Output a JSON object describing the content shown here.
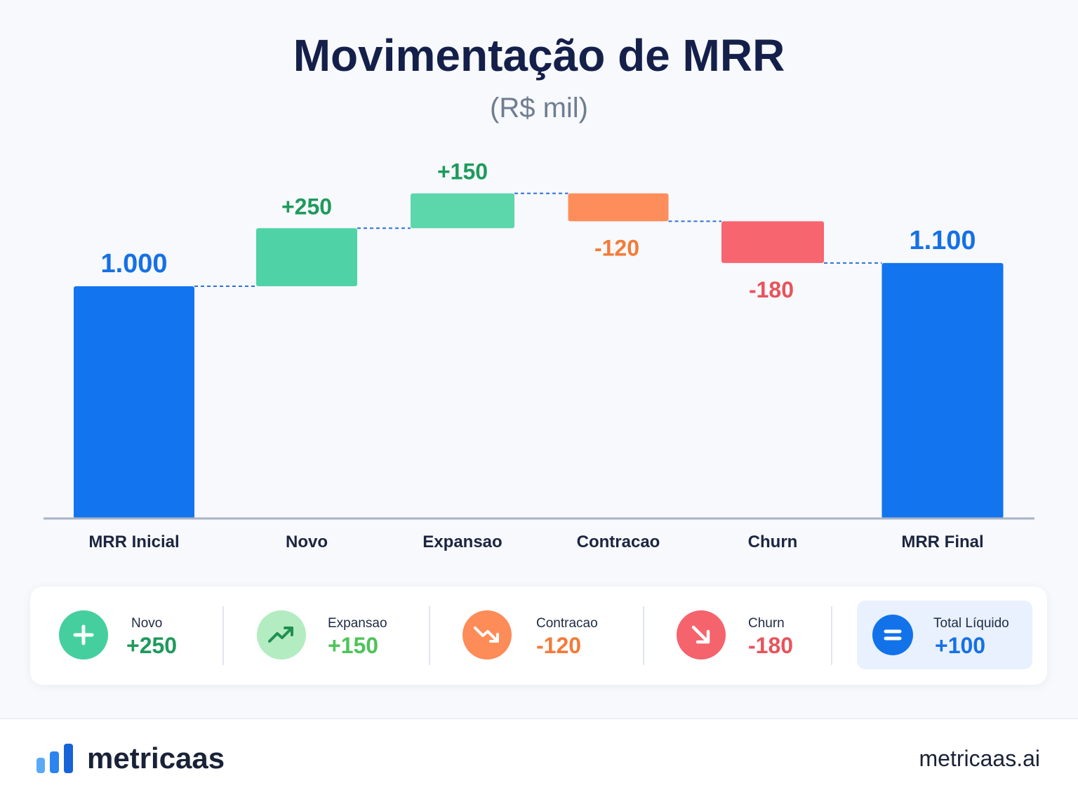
{
  "chart_data": {
    "type": "waterfall",
    "title": "Movimentação de MRR",
    "subtitle": "(R$ mil)",
    "categories": [
      "MRR Inicial",
      "Novo",
      "Expansao",
      "Contracao",
      "Churn",
      "MRR Final"
    ],
    "values": [
      1000,
      250,
      150,
      -120,
      -180,
      1100
    ],
    "kinds": [
      "total",
      "delta",
      "delta",
      "delta",
      "delta",
      "total"
    ],
    "labels": [
      "1.000",
      "+250",
      "+150",
      "-120",
      "-180",
      "1.100"
    ],
    "colors": [
      "#1374ef",
      "#4fd3a6",
      "#5cd6ab",
      "#fe8d5c",
      "#f7656f",
      "#1374ef"
    ],
    "label_colors": [
      "#1670e6",
      "#1e9a5c",
      "#1e9a5c",
      "#f37b38",
      "#e8535c",
      "#1670e6"
    ],
    "grid": false,
    "connectors": true
  },
  "summary": [
    {
      "label": "Novo",
      "value": "+250",
      "icon": "plus-icon",
      "icon_bg": "#45cf9f",
      "value_color": "#1e9a5c"
    },
    {
      "label": "Expansao",
      "value": "+150",
      "icon": "trending-up-icon",
      "icon_bg": "#b3ecc0",
      "value_color": "#4ec35a"
    },
    {
      "label": "Contracao",
      "value": "-120",
      "icon": "trending-down-icon",
      "icon_bg": "#fd8c58",
      "value_color": "#f37b38"
    },
    {
      "label": "Churn",
      "value": "-180",
      "icon": "arrow-down-right-icon",
      "icon_bg": "#f5636d",
      "value_color": "#e8535c"
    },
    {
      "label": "Total Líquido",
      "value": "+100",
      "icon": "equals-icon",
      "icon_bg": "#1272ea",
      "value_color": "#1670e6"
    }
  ],
  "footer": {
    "brand": "metricaas",
    "site": "metricaas.ai",
    "brand_icon": "bar-chart-logo-icon"
  }
}
